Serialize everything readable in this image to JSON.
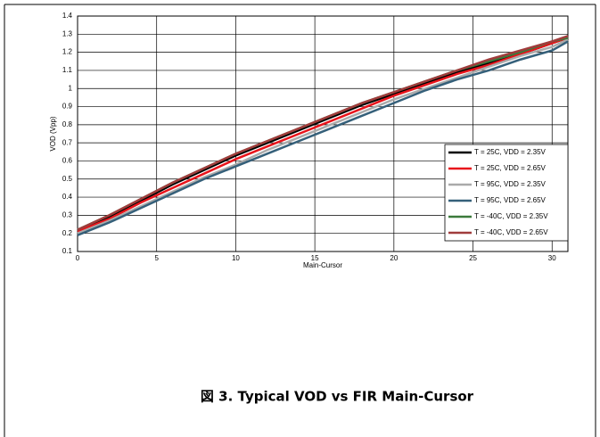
{
  "chart_data": {
    "type": "line",
    "caption": "図 3. Typical VOD vs FIR Main-Cursor",
    "xlabel": "Main-Cursor",
    "ylabel": "VOD (Vpp)",
    "x": [
      0,
      2,
      4,
      6,
      8,
      10,
      12,
      14,
      16,
      18,
      20,
      22,
      24,
      26,
      28,
      30,
      31
    ],
    "series": [
      {
        "name": "T = 25C, VDD = 2.35V",
        "color": "#000000",
        "values": [
          0.21,
          0.29,
          0.38,
          0.47,
          0.55,
          0.63,
          0.7,
          0.77,
          0.84,
          0.91,
          0.97,
          1.03,
          1.09,
          1.14,
          1.19,
          1.25,
          1.28
        ]
      },
      {
        "name": "T = 25C, VDD = 2.65V",
        "color": "#e8141b",
        "values": [
          0.21,
          0.28,
          0.37,
          0.45,
          0.53,
          0.61,
          0.68,
          0.75,
          0.82,
          0.89,
          0.96,
          1.02,
          1.08,
          1.13,
          1.19,
          1.25,
          1.28
        ]
      },
      {
        "name": "T = 95C, VDD = 2.35V",
        "color": "#aaaaaa",
        "values": [
          0.2,
          0.27,
          0.35,
          0.43,
          0.51,
          0.58,
          0.66,
          0.73,
          0.8,
          0.87,
          0.94,
          1.0,
          1.06,
          1.12,
          1.18,
          1.23,
          1.27
        ]
      },
      {
        "name": "T = 95C, VDD = 2.65V",
        "color": "#35607a",
        "values": [
          0.19,
          0.26,
          0.34,
          0.42,
          0.5,
          0.57,
          0.64,
          0.71,
          0.78,
          0.85,
          0.92,
          0.99,
          1.05,
          1.1,
          1.16,
          1.21,
          1.26
        ]
      },
      {
        "name": "T = -40C, VDD = 2.35V",
        "color": "#3b7a3b",
        "values": [
          0.22,
          0.3,
          0.39,
          0.48,
          0.56,
          0.64,
          0.71,
          0.78,
          0.85,
          0.92,
          0.98,
          1.04,
          1.1,
          1.15,
          1.2,
          1.26,
          1.28
        ]
      },
      {
        "name": "T = -40C, VDD = 2.65V",
        "color": "#a03c3c",
        "values": [
          0.22,
          0.3,
          0.39,
          0.48,
          0.56,
          0.64,
          0.71,
          0.78,
          0.85,
          0.92,
          0.98,
          1.04,
          1.1,
          1.16,
          1.21,
          1.26,
          1.29
        ]
      }
    ],
    "xlim": [
      0,
      31
    ],
    "xticks": [
      0,
      5,
      10,
      15,
      20,
      25,
      30
    ],
    "ylim": [
      0.1,
      1.4
    ],
    "yticks": [
      0.1,
      0.2,
      0.3,
      0.4,
      0.5,
      0.6,
      0.7,
      0.8,
      0.9,
      1,
      1.1,
      1.2,
      1.3,
      1.4
    ],
    "grid": true,
    "legend": "lower right"
  }
}
